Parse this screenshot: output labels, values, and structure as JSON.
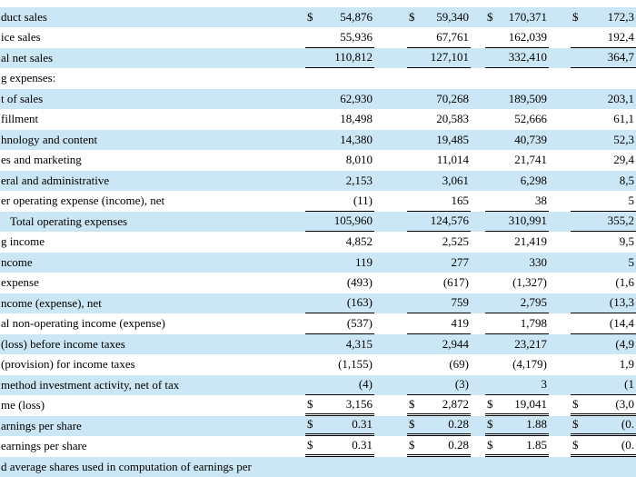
{
  "document": {
    "type": "income-statement-table",
    "stripe_color": "#cbe6f4",
    "text_color": "#000000",
    "rule_color": "#000000"
  },
  "table": {
    "rows": [
      {
        "label": "duct sales",
        "indent": 0,
        "stripe": true,
        "rule": "none",
        "cells": [
          [
            "$",
            "54,876"
          ],
          [
            "$",
            "59,340"
          ],
          [
            "$",
            "170,371"
          ],
          [
            "$",
            "172,3"
          ]
        ]
      },
      {
        "label": "ice sales",
        "indent": 0,
        "stripe": false,
        "rule": "single",
        "cells": [
          [
            "",
            "55,936"
          ],
          [
            "",
            "67,761"
          ],
          [
            "",
            "162,039"
          ],
          [
            "",
            "192,4"
          ]
        ]
      },
      {
        "label": "al net sales",
        "indent": 0,
        "stripe": true,
        "rule": "single",
        "cells": [
          [
            "",
            "110,812"
          ],
          [
            "",
            "127,101"
          ],
          [
            "",
            "332,410"
          ],
          [
            "",
            "364,7"
          ]
        ]
      },
      {
        "label": "g expenses:",
        "indent": 0,
        "stripe": false,
        "rule": "none",
        "cells": [
          [
            "",
            ""
          ],
          [
            "",
            ""
          ],
          [
            "",
            ""
          ],
          [
            "",
            ""
          ]
        ]
      },
      {
        "label": "t of sales",
        "indent": 0,
        "stripe": true,
        "rule": "none",
        "cells": [
          [
            "",
            "62,930"
          ],
          [
            "",
            "70,268"
          ],
          [
            "",
            "189,509"
          ],
          [
            "",
            "203,1"
          ]
        ]
      },
      {
        "label": "fillment",
        "indent": 0,
        "stripe": false,
        "rule": "none",
        "cells": [
          [
            "",
            "18,498"
          ],
          [
            "",
            "20,583"
          ],
          [
            "",
            "52,666"
          ],
          [
            "",
            "61,1"
          ]
        ]
      },
      {
        "label": "hnology and content",
        "indent": 0,
        "stripe": true,
        "rule": "none",
        "cells": [
          [
            "",
            "14,380"
          ],
          [
            "",
            "19,485"
          ],
          [
            "",
            "40,739"
          ],
          [
            "",
            "52,3"
          ]
        ]
      },
      {
        "label": "es and marketing",
        "indent": 0,
        "stripe": false,
        "rule": "none",
        "cells": [
          [
            "",
            "8,010"
          ],
          [
            "",
            "11,014"
          ],
          [
            "",
            "21,741"
          ],
          [
            "",
            "29,4"
          ]
        ]
      },
      {
        "label": "eral and administrative",
        "indent": 0,
        "stripe": true,
        "rule": "none",
        "cells": [
          [
            "",
            "2,153"
          ],
          [
            "",
            "3,061"
          ],
          [
            "",
            "6,298"
          ],
          [
            "",
            "8,5"
          ]
        ]
      },
      {
        "label": "er operating expense (income), net",
        "indent": 0,
        "stripe": false,
        "rule": "single",
        "cells": [
          [
            "",
            "(11)"
          ],
          [
            "",
            "165"
          ],
          [
            "",
            "38"
          ],
          [
            "",
            "5"
          ]
        ]
      },
      {
        "label": "Total operating expenses",
        "indent": 1,
        "stripe": true,
        "rule": "single",
        "cells": [
          [
            "",
            "105,960"
          ],
          [
            "",
            "124,576"
          ],
          [
            "",
            "310,991"
          ],
          [
            "",
            "355,2"
          ]
        ]
      },
      {
        "label": "g income",
        "indent": 0,
        "stripe": false,
        "rule": "none",
        "cells": [
          [
            "",
            "4,852"
          ],
          [
            "",
            "2,525"
          ],
          [
            "",
            "21,419"
          ],
          [
            "",
            "9,5"
          ]
        ]
      },
      {
        "label": "ncome",
        "indent": 0,
        "stripe": true,
        "rule": "none",
        "cells": [
          [
            "",
            "119"
          ],
          [
            "",
            "277"
          ],
          [
            "",
            "330"
          ],
          [
            "",
            "5"
          ]
        ]
      },
      {
        "label": "expense",
        "indent": 0,
        "stripe": false,
        "rule": "none",
        "cells": [
          [
            "",
            "(493)"
          ],
          [
            "",
            "(617)"
          ],
          [
            "",
            "(1,327)"
          ],
          [
            "",
            "(1,6"
          ]
        ]
      },
      {
        "label": "ncome (expense), net",
        "indent": 0,
        "stripe": true,
        "rule": "single",
        "cells": [
          [
            "",
            "(163)"
          ],
          [
            "",
            "759"
          ],
          [
            "",
            "2,795"
          ],
          [
            "",
            "(13,3"
          ]
        ]
      },
      {
        "label": "al non-operating income (expense)",
        "indent": 0,
        "stripe": false,
        "rule": "single",
        "cells": [
          [
            "",
            "(537)"
          ],
          [
            "",
            "419"
          ],
          [
            "",
            "1,798"
          ],
          [
            "",
            "(14,4"
          ]
        ]
      },
      {
        "label": "(loss) before income taxes",
        "indent": 0,
        "stripe": true,
        "rule": "none",
        "cells": [
          [
            "",
            "4,315"
          ],
          [
            "",
            "2,944"
          ],
          [
            "",
            "23,217"
          ],
          [
            "",
            "(4,9"
          ]
        ]
      },
      {
        "label": "(provision) for income taxes",
        "indent": 0,
        "stripe": false,
        "rule": "none",
        "cells": [
          [
            "",
            "(1,155)"
          ],
          [
            "",
            "(69)"
          ],
          [
            "",
            "(4,179)"
          ],
          [
            "",
            "1,9"
          ]
        ]
      },
      {
        "label": "method investment activity, net of tax",
        "indent": 0,
        "stripe": true,
        "rule": "single",
        "cells": [
          [
            "",
            "(4)"
          ],
          [
            "",
            "(3)"
          ],
          [
            "",
            "3"
          ],
          [
            "",
            "(1"
          ]
        ]
      },
      {
        "label": "me (loss)",
        "indent": 0,
        "stripe": false,
        "rule": "double",
        "cells": [
          [
            "$",
            "3,156"
          ],
          [
            "$",
            "2,872"
          ],
          [
            "$",
            "19,041"
          ],
          [
            "$",
            "(3,0"
          ]
        ]
      },
      {
        "label": "arnings per share",
        "indent": 0,
        "stripe": true,
        "rule": "double",
        "cells": [
          [
            "$",
            "0.31"
          ],
          [
            "$",
            "0.28"
          ],
          [
            "$",
            "1.88"
          ],
          [
            "$",
            "(0."
          ]
        ]
      },
      {
        "label": "earnings per share",
        "indent": 0,
        "stripe": false,
        "rule": "double",
        "cells": [
          [
            "$",
            "0.31"
          ],
          [
            "$",
            "0.28"
          ],
          [
            "$",
            "1.85"
          ],
          [
            "$",
            "(0."
          ]
        ]
      },
      {
        "label": "d average shares used in computation of earnings per",
        "indent": 0,
        "stripe": true,
        "rule": "none",
        "cells": [
          [
            "",
            ""
          ],
          [
            "",
            ""
          ],
          [
            "",
            ""
          ],
          [
            "",
            ""
          ]
        ]
      }
    ],
    "layout": {
      "label_width": 336,
      "dollar_widths": [
        18,
        18,
        18,
        18
      ],
      "amount_widths": [
        58,
        52,
        52,
        54
      ],
      "gap_widths": [
        36,
        16,
        24
      ]
    }
  }
}
